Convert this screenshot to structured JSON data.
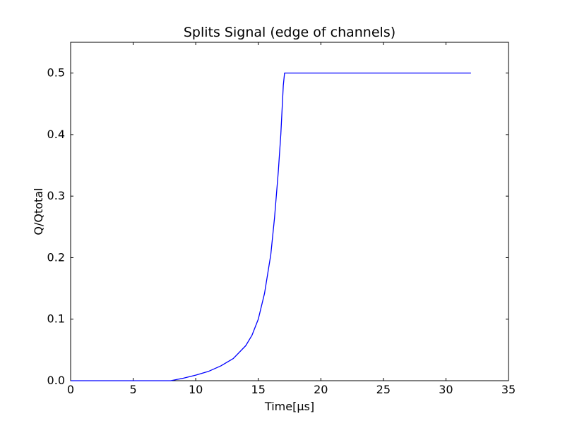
{
  "chart_data": {
    "type": "line",
    "title": "Splits Signal (edge of channels)",
    "xlabel": "Time[μs]",
    "ylabel": "Q/Qtotal",
    "xlim": [
      0,
      35
    ],
    "ylim": [
      0,
      0.55
    ],
    "xticks": [
      0,
      5,
      10,
      15,
      20,
      25,
      30,
      35
    ],
    "xtick_labels": [
      "0",
      "5",
      "10",
      "15",
      "20",
      "25",
      "30",
      "35"
    ],
    "yticks": [
      0.0,
      0.1,
      0.2,
      0.3,
      0.4,
      0.5
    ],
    "ytick_labels": [
      "0.0",
      "0.1",
      "0.2",
      "0.3",
      "0.4",
      "0.5"
    ],
    "grid": false,
    "series": [
      {
        "color": "#0000ff",
        "x": [
          0,
          2,
          4,
          6,
          8,
          9,
          10,
          11,
          12,
          13,
          14,
          14.5,
          15,
          15.5,
          16,
          16.3,
          16.6,
          16.8,
          17.0,
          17.1,
          17.2,
          20,
          25,
          30,
          32
        ],
        "y": [
          0,
          0,
          0,
          0,
          0,
          0.004,
          0.009,
          0.015,
          0.024,
          0.036,
          0.057,
          0.074,
          0.1,
          0.142,
          0.205,
          0.265,
          0.34,
          0.4,
          0.48,
          0.5,
          0.5,
          0.5,
          0.5,
          0.5,
          0.5
        ]
      }
    ]
  }
}
